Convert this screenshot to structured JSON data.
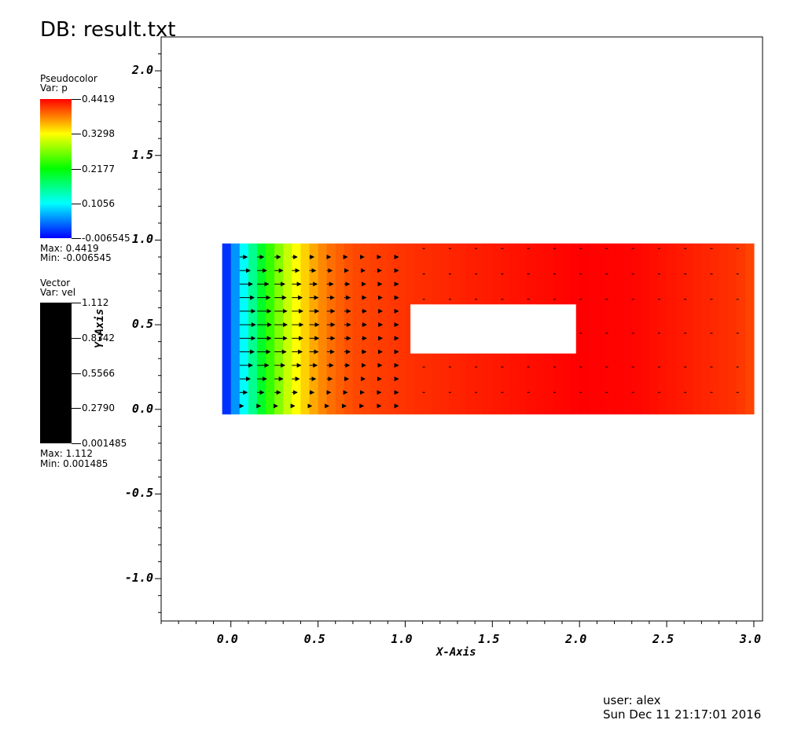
{
  "header": {
    "title": "DB: result.txt"
  },
  "pseudocolor_legend": {
    "plot_type": "Pseudocolor",
    "var_label": "Var: p",
    "ticks": [
      "0.4419",
      "0.3298",
      "0.2177",
      "0.1056",
      "-0.006545"
    ],
    "max_label": "Max:  0.4419",
    "min_label": "Min: -0.006545",
    "colors": [
      "#0000ff",
      "#00ffff",
      "#00ff00",
      "#ffff00",
      "#ff0000"
    ]
  },
  "vector_legend": {
    "plot_type": "Vector",
    "var_label": "Var: vel",
    "ticks": [
      "1.112",
      "0.8342",
      "0.5566",
      "0.2790",
      "0.001485"
    ],
    "max_label": "Max:  1.112",
    "min_label": "Min:  0.001485",
    "color": "#000000"
  },
  "footer": {
    "user": "user: alex",
    "date": "Sun Dec 11 21:17:01 2016"
  },
  "chart_data": {
    "type": "heatmap",
    "title": "DB: result.txt",
    "xlabel": "X-Axis",
    "ylabel": "Y-Axis",
    "xlim": [
      -0.4,
      3.05
    ],
    "ylim": [
      -1.25,
      2.2
    ],
    "x_ticks": [
      0.0,
      0.5,
      1.0,
      1.5,
      2.0,
      2.5,
      3.0
    ],
    "x_tick_labels": [
      "0.0",
      "0.5",
      "1.0",
      "1.5",
      "2.0",
      "2.5",
      "3.0"
    ],
    "y_ticks": [
      -1.0,
      -0.5,
      0.0,
      0.5,
      1.0,
      1.5,
      2.0
    ],
    "y_tick_labels": [
      "-1.0",
      "-0.5",
      "0.0",
      "0.5",
      "1.0",
      "1.5",
      "2.0"
    ],
    "domain": {
      "x": [
        -0.05,
        3.0
      ],
      "y": [
        -0.03,
        0.98
      ]
    },
    "obstacle": {
      "x": [
        1.03,
        1.98
      ],
      "y": [
        0.33,
        0.62
      ]
    },
    "pressure_profile": {
      "x": [
        -0.05,
        0.05,
        0.15,
        0.25,
        0.35,
        0.45,
        0.55,
        0.7,
        1.0,
        2.0,
        2.3,
        2.6,
        2.9,
        3.0
      ],
      "p": [
        -0.006545,
        0.08,
        0.18,
        0.26,
        0.32,
        0.36,
        0.39,
        0.41,
        0.42,
        0.4419,
        0.44,
        0.43,
        0.42,
        0.41
      ]
    },
    "vector_rows_y": [
      0.02,
      0.1,
      0.18,
      0.26,
      0.34,
      0.42,
      0.5,
      0.58,
      0.66,
      0.74,
      0.82,
      0.9
    ],
    "vector_cols_x": [
      0.05,
      0.15,
      0.25,
      0.35,
      0.45,
      0.55,
      0.65,
      0.75,
      0.85,
      0.95
    ],
    "vector_magnitude_range": [
      0.001485,
      1.112
    ]
  }
}
